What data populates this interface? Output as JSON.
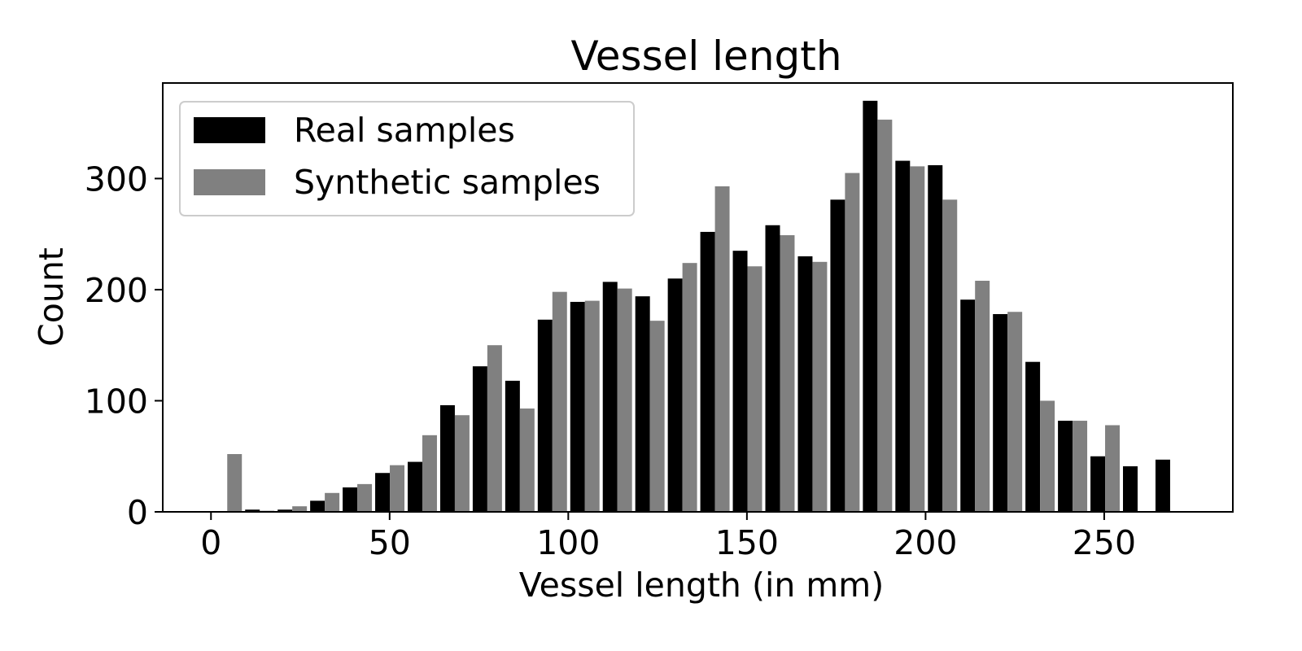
{
  "chart_data": {
    "type": "bar",
    "title": "Vessel length",
    "xlabel": "Vessel length (in mm)",
    "ylabel": "Count",
    "xlim": [
      -13.5,
      286
    ],
    "ylim": [
      0,
      386
    ],
    "xticks": [
      0,
      50,
      100,
      150,
      200,
      250
    ],
    "yticks": [
      0,
      100,
      200,
      300
    ],
    "grid": false,
    "legend_position": "top-left",
    "bin_width": 9.1,
    "bin_starts": [
      0,
      9.1,
      18.2,
      27.3,
      36.4,
      45.5,
      54.6,
      63.7,
      72.8,
      81.9,
      91.0,
      100.1,
      109.2,
      118.3,
      127.4,
      136.5,
      145.6,
      154.7,
      163.8,
      172.9,
      182.0,
      191.1,
      200.2,
      209.3,
      218.4,
      227.5,
      236.6,
      245.7,
      254.8,
      263.9
    ],
    "series": [
      {
        "name": "Real samples",
        "color": "#000000",
        "values": [
          0,
          2,
          2,
          10,
          22,
          35,
          45,
          96,
          131,
          118,
          173,
          189,
          207,
          194,
          210,
          252,
          235,
          258,
          230,
          281,
          370,
          316,
          312,
          191,
          178,
          135,
          82,
          50,
          41,
          47
        ]
      },
      {
        "name": "Synthetic samples",
        "color": "#808080",
        "values": [
          52,
          1,
          5,
          17,
          25,
          42,
          69,
          87,
          150,
          93,
          198,
          190,
          201,
          172,
          224,
          293,
          221,
          249,
          225,
          305,
          353,
          311,
          281,
          208,
          180,
          100,
          82,
          78,
          0,
          0
        ]
      }
    ]
  }
}
